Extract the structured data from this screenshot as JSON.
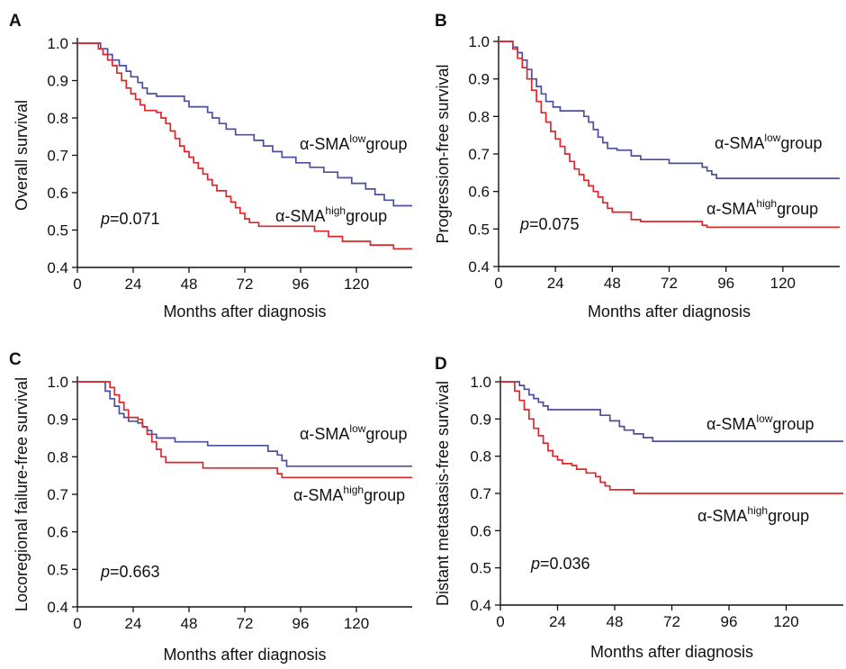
{
  "chart_data": [
    {
      "panel": "A",
      "type": "line",
      "ylabel": "Overall survival",
      "xlabel": "Months after diagnosis",
      "xlim": [
        0,
        144
      ],
      "ylim": [
        0.4,
        1.0
      ],
      "xticks": [
        "0",
        "24",
        "48",
        "72",
        "96",
        "120"
      ],
      "yticks": [
        "0.4",
        "0.5",
        "0.6",
        "0.7",
        "0.8",
        "0.9",
        "1.0"
      ],
      "p_value": "=0.071",
      "series": [
        {
          "label_prefix": "α-SMA",
          "label_sup": "low",
          "label_suffix": "group",
          "color": "#4a4f9e",
          "points": [
            [
              0,
              1.0
            ],
            [
              8,
              1.0
            ],
            [
              10,
              0.985
            ],
            [
              13,
              0.97
            ],
            [
              15,
              0.955
            ],
            [
              18,
              0.94
            ],
            [
              21,
              0.925
            ],
            [
              23,
              0.91
            ],
            [
              26,
              0.895
            ],
            [
              28,
              0.88
            ],
            [
              30,
              0.865
            ],
            [
              34,
              0.858
            ],
            [
              44,
              0.858
            ],
            [
              46,
              0.845
            ],
            [
              48,
              0.83
            ],
            [
              54,
              0.83
            ],
            [
              56,
              0.815
            ],
            [
              58,
              0.8
            ],
            [
              61,
              0.785
            ],
            [
              64,
              0.77
            ],
            [
              68,
              0.755
            ],
            [
              74,
              0.755
            ],
            [
              76,
              0.74
            ],
            [
              80,
              0.725
            ],
            [
              84,
              0.71
            ],
            [
              88,
              0.695
            ],
            [
              94,
              0.68
            ],
            [
              100,
              0.668
            ],
            [
              106,
              0.655
            ],
            [
              112,
              0.64
            ],
            [
              118,
              0.625
            ],
            [
              124,
              0.61
            ],
            [
              128,
              0.595
            ],
            [
              132,
              0.58
            ],
            [
              136,
              0.565
            ],
            [
              144,
              0.565
            ]
          ]
        },
        {
          "label_prefix": "α-SMA",
          "label_sup": "high",
          "label_suffix": "group",
          "color": "#e0262b",
          "points": [
            [
              0,
              1.0
            ],
            [
              7,
              1.0
            ],
            [
              9,
              0.985
            ],
            [
              11,
              0.97
            ],
            [
              13,
              0.955
            ],
            [
              15,
              0.94
            ],
            [
              17,
              0.92
            ],
            [
              19,
              0.9
            ],
            [
              21,
              0.88
            ],
            [
              23,
              0.865
            ],
            [
              25,
              0.85
            ],
            [
              27,
              0.835
            ],
            [
              29,
              0.82
            ],
            [
              34,
              0.815
            ],
            [
              36,
              0.8
            ],
            [
              38,
              0.785
            ],
            [
              40,
              0.765
            ],
            [
              42,
              0.745
            ],
            [
              44,
              0.725
            ],
            [
              46,
              0.71
            ],
            [
              48,
              0.695
            ],
            [
              50,
              0.68
            ],
            [
              52,
              0.665
            ],
            [
              54,
              0.65
            ],
            [
              56,
              0.635
            ],
            [
              58,
              0.62
            ],
            [
              60,
              0.605
            ],
            [
              64,
              0.59
            ],
            [
              66,
              0.575
            ],
            [
              68,
              0.56
            ],
            [
              70,
              0.545
            ],
            [
              72,
              0.53
            ],
            [
              74,
              0.52
            ],
            [
              78,
              0.51
            ],
            [
              86,
              0.51
            ],
            [
              94,
              0.51
            ],
            [
              100,
              0.51
            ],
            [
              102,
              0.497
            ],
            [
              108,
              0.483
            ],
            [
              114,
              0.47
            ],
            [
              126,
              0.46
            ],
            [
              136,
              0.45
            ],
            [
              144,
              0.45
            ]
          ]
        }
      ]
    },
    {
      "panel": "B",
      "type": "line",
      "ylabel": "Progression-free survival",
      "xlabel": "Months after diagnosis",
      "xlim": [
        0,
        144
      ],
      "ylim": [
        0.4,
        1.0
      ],
      "xticks": [
        "0",
        "24",
        "48",
        "72",
        "96",
        "120"
      ],
      "yticks": [
        "0.4",
        "0.5",
        "0.6",
        "0.7",
        "0.8",
        "0.9",
        "1.0"
      ],
      "p_value": "=0.075",
      "series": [
        {
          "label_prefix": "α-SMA",
          "label_sup": "low",
          "label_suffix": "group",
          "color": "#4a4f9e",
          "points": [
            [
              0,
              1.0
            ],
            [
              4,
              1.0
            ],
            [
              6,
              0.985
            ],
            [
              8,
              0.97
            ],
            [
              10,
              0.95
            ],
            [
              12,
              0.925
            ],
            [
              14,
              0.9
            ],
            [
              16,
              0.88
            ],
            [
              18,
              0.86
            ],
            [
              20,
              0.84
            ],
            [
              23,
              0.825
            ],
            [
              26,
              0.815
            ],
            [
              34,
              0.815
            ],
            [
              36,
              0.8
            ],
            [
              38,
              0.785
            ],
            [
              40,
              0.765
            ],
            [
              42,
              0.745
            ],
            [
              44,
              0.73
            ],
            [
              46,
              0.715
            ],
            [
              50,
              0.71
            ],
            [
              54,
              0.71
            ],
            [
              56,
              0.695
            ],
            [
              60,
              0.685
            ],
            [
              70,
              0.685
            ],
            [
              72,
              0.675
            ],
            [
              84,
              0.675
            ],
            [
              86,
              0.665
            ],
            [
              88,
              0.655
            ],
            [
              90,
              0.645
            ],
            [
              92,
              0.635
            ],
            [
              144,
              0.635
            ]
          ]
        },
        {
          "label_prefix": "α-SMA",
          "label_sup": "high",
          "label_suffix": "group",
          "color": "#e0262b",
          "points": [
            [
              0,
              1.0
            ],
            [
              4,
              1.0
            ],
            [
              6,
              0.98
            ],
            [
              8,
              0.955
            ],
            [
              10,
              0.93
            ],
            [
              12,
              0.9
            ],
            [
              14,
              0.87
            ],
            [
              16,
              0.84
            ],
            [
              18,
              0.81
            ],
            [
              20,
              0.785
            ],
            [
              22,
              0.76
            ],
            [
              24,
              0.74
            ],
            [
              26,
              0.72
            ],
            [
              28,
              0.7
            ],
            [
              30,
              0.68
            ],
            [
              32,
              0.66
            ],
            [
              34,
              0.645
            ],
            [
              36,
              0.63
            ],
            [
              38,
              0.615
            ],
            [
              40,
              0.6
            ],
            [
              42,
              0.585
            ],
            [
              44,
              0.57
            ],
            [
              46,
              0.555
            ],
            [
              48,
              0.545
            ],
            [
              54,
              0.545
            ],
            [
              56,
              0.525
            ],
            [
              60,
              0.52
            ],
            [
              84,
              0.52
            ],
            [
              86,
              0.51
            ],
            [
              88,
              0.505
            ],
            [
              144,
              0.505
            ]
          ]
        }
      ]
    },
    {
      "panel": "C",
      "type": "line",
      "ylabel": "Locoregional failure-free survival",
      "xlabel": "Months after diagnosis",
      "xlim": [
        0,
        144
      ],
      "ylim": [
        0.4,
        1.0
      ],
      "xticks": [
        "0",
        "24",
        "48",
        "72",
        "96",
        "120"
      ],
      "yticks": [
        "0.4",
        "0.5",
        "0.6",
        "0.7",
        "0.8",
        "0.9",
        "1.0"
      ],
      "p_value": "=0.663",
      "series": [
        {
          "label_prefix": "α-SMA",
          "label_sup": "low",
          "label_suffix": "group",
          "color": "#4a4f9e",
          "points": [
            [
              0,
              1.0
            ],
            [
              10,
              1.0
            ],
            [
              12,
              0.975
            ],
            [
              14,
              0.955
            ],
            [
              16,
              0.935
            ],
            [
              18,
              0.915
            ],
            [
              20,
              0.905
            ],
            [
              22,
              0.895
            ],
            [
              26,
              0.89
            ],
            [
              28,
              0.88
            ],
            [
              30,
              0.87
            ],
            [
              32,
              0.86
            ],
            [
              34,
              0.85
            ],
            [
              40,
              0.85
            ],
            [
              42,
              0.84
            ],
            [
              54,
              0.84
            ],
            [
              56,
              0.83
            ],
            [
              80,
              0.83
            ],
            [
              82,
              0.815
            ],
            [
              86,
              0.805
            ],
            [
              88,
              0.79
            ],
            [
              90,
              0.775
            ],
            [
              144,
              0.775
            ]
          ]
        },
        {
          "label_prefix": "α-SMA",
          "label_sup": "high",
          "label_suffix": "group",
          "color": "#e0262b",
          "points": [
            [
              0,
              1.0
            ],
            [
              12,
              1.0
            ],
            [
              14,
              0.985
            ],
            [
              16,
              0.965
            ],
            [
              18,
              0.945
            ],
            [
              20,
              0.925
            ],
            [
              22,
              0.905
            ],
            [
              26,
              0.9
            ],
            [
              28,
              0.88
            ],
            [
              30,
              0.86
            ],
            [
              32,
              0.84
            ],
            [
              34,
              0.82
            ],
            [
              36,
              0.8
            ],
            [
              38,
              0.785
            ],
            [
              52,
              0.785
            ],
            [
              54,
              0.77
            ],
            [
              84,
              0.77
            ],
            [
              86,
              0.755
            ],
            [
              88,
              0.745
            ],
            [
              144,
              0.745
            ]
          ]
        }
      ]
    },
    {
      "panel": "D",
      "type": "line",
      "ylabel": "Distant metastasis-free survival",
      "xlabel": "Months after diagnosis",
      "xlim": [
        0,
        144
      ],
      "ylim": [
        0.4,
        1.0
      ],
      "xticks": [
        "0",
        "24",
        "48",
        "72",
        "96",
        "120"
      ],
      "yticks": [
        "0.4",
        "0.5",
        "0.6",
        "0.7",
        "0.8",
        "0.9",
        "1.0"
      ],
      "p_value": "=0.036",
      "series": [
        {
          "label_prefix": "α-SMA",
          "label_sup": "low",
          "label_suffix": "group",
          "color": "#4a4f9e",
          "points": [
            [
              0,
              1.0
            ],
            [
              6,
              1.0
            ],
            [
              8,
              0.99
            ],
            [
              10,
              0.98
            ],
            [
              12,
              0.965
            ],
            [
              14,
              0.955
            ],
            [
              16,
              0.945
            ],
            [
              18,
              0.935
            ],
            [
              20,
              0.925
            ],
            [
              40,
              0.925
            ],
            [
              42,
              0.91
            ],
            [
              46,
              0.895
            ],
            [
              50,
              0.88
            ],
            [
              52,
              0.87
            ],
            [
              56,
              0.86
            ],
            [
              60,
              0.85
            ],
            [
              64,
              0.84
            ],
            [
              144,
              0.84
            ]
          ]
        },
        {
          "label_prefix": "α-SMA",
          "label_sup": "high",
          "label_suffix": "group",
          "color": "#e0262b",
          "points": [
            [
              0,
              1.0
            ],
            [
              4,
              1.0
            ],
            [
              6,
              0.975
            ],
            [
              8,
              0.95
            ],
            [
              10,
              0.925
            ],
            [
              12,
              0.9
            ],
            [
              14,
              0.875
            ],
            [
              16,
              0.855
            ],
            [
              18,
              0.835
            ],
            [
              20,
              0.815
            ],
            [
              22,
              0.8
            ],
            [
              24,
              0.79
            ],
            [
              26,
              0.78
            ],
            [
              30,
              0.775
            ],
            [
              32,
              0.765
            ],
            [
              36,
              0.755
            ],
            [
              40,
              0.745
            ],
            [
              42,
              0.73
            ],
            [
              44,
              0.72
            ],
            [
              46,
              0.71
            ],
            [
              54,
              0.71
            ],
            [
              56,
              0.7
            ],
            [
              144,
              0.7
            ]
          ]
        }
      ]
    }
  ],
  "p_label": "p"
}
